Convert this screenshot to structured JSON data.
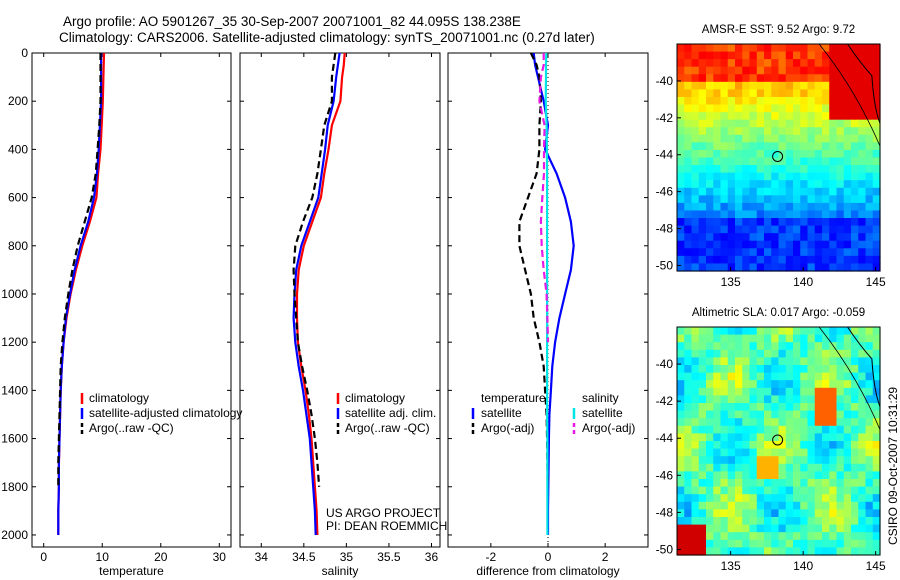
{
  "header": {
    "line1": "Argo profile: AO 5901267_35 30-Sep-2007 20071001_82 44.095S 138.238E",
    "line2": "Climatology: CARS2006. Satellite-adjusted climatology: synTS_20071001.nc (0.27d later)"
  },
  "credits": {
    "project": "US ARGO PROJECT",
    "pi": "PI: DEAN ROEMMICH",
    "stamp": "CSIRO 09-Oct-2007 10:31:29"
  },
  "colors": {
    "climatology": "#ff0000",
    "satellite": "#0000ff",
    "argo": "#000000",
    "salinity_satellite": "#00e5e5",
    "salinity_argo": "#e619e6"
  },
  "chart_data": [
    {
      "type": "line",
      "title": "",
      "xlabel": "temperature",
      "ylabel": "",
      "xlim": [
        -2,
        32
      ],
      "ylim": [
        2050,
        0
      ],
      "xticks": [
        0,
        10,
        20,
        30
      ],
      "yticks": [
        0,
        200,
        400,
        600,
        800,
        1000,
        1200,
        1400,
        1600,
        1800,
        2000
      ],
      "y": [
        0,
        100,
        200,
        300,
        400,
        500,
        600,
        700,
        800,
        900,
        1000,
        1100,
        1200,
        1300,
        1400,
        1500,
        1600,
        1700,
        1800,
        1900,
        2000
      ],
      "series": [
        {
          "name": "climatology",
          "style": "solid",
          "color": "#ff0000",
          "values": [
            10.3,
            10.2,
            10.1,
            9.9,
            9.7,
            9.3,
            9.0,
            7.9,
            6.6,
            5.5,
            4.6,
            3.9,
            3.4,
            3.1,
            2.9,
            2.8,
            2.7,
            2.6,
            2.6,
            2.5,
            2.5
          ]
        },
        {
          "name": "satellite-adjusted climatology",
          "style": "solid",
          "color": "#0000ff",
          "values": [
            9.8,
            9.8,
            9.8,
            9.6,
            9.4,
            9.1,
            8.6,
            7.6,
            6.3,
            5.3,
            4.5,
            3.8,
            3.4,
            3.1,
            2.9,
            2.8,
            2.7,
            2.6,
            2.6,
            2.5,
            2.5
          ]
        },
        {
          "name": "Argo(..raw -QC)",
          "style": "dashed",
          "color": "#000000",
          "values": [
            9.7,
            9.7,
            9.7,
            9.5,
            9.2,
            8.9,
            8.2,
            7.0,
            5.8,
            4.9,
            4.2,
            3.6,
            3.2,
            2.9,
            2.8,
            2.7,
            2.6,
            2.5,
            2.5,
            null,
            null
          ]
        }
      ]
    },
    {
      "type": "line",
      "title": "",
      "xlabel": "salinity",
      "ylabel": "",
      "xlim": [
        33.75,
        36.1
      ],
      "ylim": [
        2050,
        0
      ],
      "xticks": [
        34,
        34.5,
        35,
        35.5,
        36
      ],
      "y": [
        0,
        50,
        100,
        200,
        300,
        400,
        500,
        600,
        700,
        800,
        900,
        1000,
        1100,
        1200,
        1300,
        1400,
        1500,
        1600,
        1700,
        1800,
        1900,
        2000
      ],
      "series": [
        {
          "name": "climatology",
          "style": "solid",
          "color": "#ff0000",
          "values": [
            34.98,
            34.97,
            34.95,
            34.93,
            34.83,
            34.79,
            34.74,
            34.7,
            34.6,
            34.5,
            34.44,
            34.42,
            34.42,
            34.43,
            34.47,
            34.52,
            34.56,
            34.59,
            34.61,
            34.63,
            34.65,
            34.66
          ]
        },
        {
          "name": "satellite adj. clim.",
          "style": "solid",
          "color": "#0000ff",
          "values": [
            34.92,
            34.9,
            34.88,
            34.85,
            34.78,
            34.75,
            34.71,
            34.67,
            34.57,
            34.47,
            34.41,
            34.39,
            34.38,
            34.4,
            34.44,
            34.49,
            34.53,
            34.57,
            34.59,
            34.61,
            34.63,
            34.64
          ]
        },
        {
          "name": "Argo(..raw -QC)",
          "style": "dashed",
          "color": "#000000",
          "values": [
            34.87,
            34.85,
            34.83,
            34.83,
            34.74,
            34.7,
            34.66,
            34.6,
            34.49,
            34.4,
            34.38,
            34.39,
            34.41,
            34.43,
            34.48,
            34.54,
            34.59,
            34.63,
            34.66,
            34.68,
            null,
            null
          ]
        }
      ]
    },
    {
      "type": "line",
      "title": "",
      "xlabel": "difference from climatology",
      "ylabel": "",
      "xlim": [
        -3.5,
        3.5
      ],
      "ylim": [
        2050,
        0
      ],
      "xticks": [
        -2,
        0,
        2
      ],
      "y": [
        0,
        50,
        100,
        200,
        300,
        400,
        500,
        600,
        700,
        800,
        900,
        1000,
        1100,
        1200,
        1300,
        1400,
        1500,
        1600,
        1700,
        1800,
        1900,
        2000
      ],
      "series": [
        {
          "name": "temperature satellite",
          "style": "solid",
          "color": "#0000ff",
          "values": [
            -0.5,
            -0.45,
            -0.35,
            -0.15,
            0.0,
            -0.1,
            0.3,
            0.6,
            0.8,
            0.9,
            0.8,
            0.6,
            0.4,
            0.25,
            0.15,
            0.1,
            0.05,
            0.03,
            0.02,
            0.01,
            0.0,
            0.0
          ]
        },
        {
          "name": "temperature Argo(-adj)",
          "style": "dashed",
          "color": "#000000",
          "values": [
            -0.6,
            -0.4,
            -0.3,
            -0.25,
            -0.3,
            -0.3,
            -0.4,
            -0.7,
            -1.0,
            -1.0,
            -0.8,
            -0.6,
            -0.5,
            -0.3,
            -0.15,
            -0.1,
            -0.05,
            -0.03,
            -0.02,
            -0.01,
            null,
            null
          ]
        },
        {
          "name": "salinity satellite",
          "style": "solid",
          "color": "#00e5e5",
          "values": [
            -0.06,
            -0.07,
            -0.07,
            -0.08,
            -0.05,
            -0.04,
            -0.03,
            -0.03,
            -0.03,
            -0.03,
            -0.03,
            -0.03,
            -0.03,
            -0.03,
            -0.03,
            -0.03,
            -0.03,
            -0.02,
            -0.02,
            -0.02,
            -0.02,
            -0.02
          ]
        },
        {
          "name": "salinity Argo(-adj)",
          "style": "dashed",
          "color": "#e619e6",
          "values": [
            -0.15,
            -0.15,
            -0.25,
            -0.3,
            -0.12,
            -0.14,
            -0.14,
            -0.2,
            -0.25,
            -0.22,
            -0.15,
            -0.05,
            -0.02,
            0.0,
            null,
            null,
            null,
            null,
            null,
            null,
            null,
            null
          ]
        }
      ]
    }
  ],
  "panels": {
    "p1_legend": [
      "climatology",
      "satellite-adjusted climatology",
      "Argo(..raw -QC)"
    ],
    "p2_legend": [
      "climatology",
      "satellite adj. clim.",
      "Argo(..raw -QC)"
    ],
    "p3_legend": {
      "left_header": "temperature",
      "right_header": "salinity",
      "left_items": [
        "satellite",
        "Argo(-adj)"
      ],
      "right_items": [
        "satellite",
        "Argo(-adj)"
      ]
    }
  },
  "maps": [
    {
      "title": "AMSR-E SST: 9.52 Argo: 9.72",
      "xticks": [
        "135",
        "140",
        "145"
      ],
      "yticks": [
        "-40",
        "-42",
        "-44",
        "-46",
        "-48",
        "-50"
      ],
      "marker_lon": 138.238,
      "marker_lat": -44.095
    },
    {
      "title": "Altimetric SLA: 0.017 Argo: -0.059",
      "xticks": [
        "135",
        "140",
        "145"
      ],
      "yticks": [
        "-40",
        "-42",
        "-44",
        "-46",
        "-48",
        "-50"
      ],
      "marker_lon": 138.238,
      "marker_lat": -44.095
    }
  ]
}
